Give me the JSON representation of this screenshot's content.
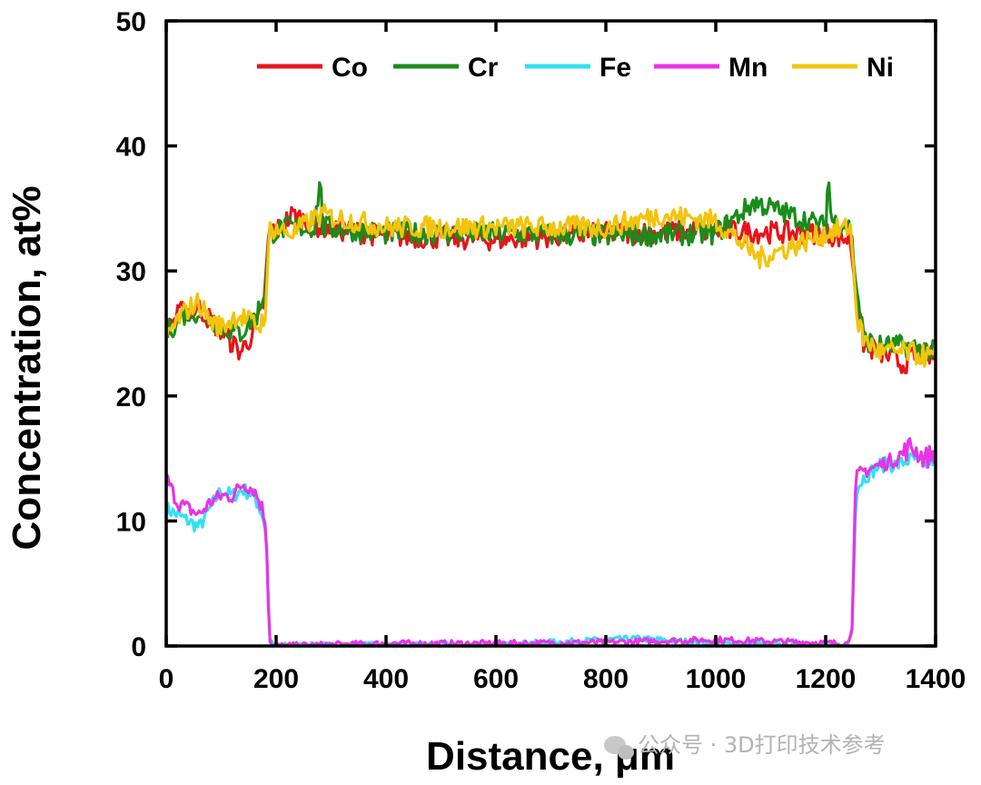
{
  "chart_data": {
    "type": "line",
    "title": "",
    "xlabel": "Distance, μm",
    "ylabel": "Concentration, at%",
    "xlim": [
      0,
      1400
    ],
    "ylim": [
      0,
      50
    ],
    "xticks": [
      0,
      200,
      400,
      600,
      800,
      1000,
      1200,
      1400
    ],
    "yticks": [
      0,
      10,
      20,
      30,
      40,
      50
    ],
    "grid": false,
    "legend_position": "top",
    "series": [
      {
        "name": "Co",
        "color": "#e8141a",
        "points": [
          [
            0,
            25.5
          ],
          [
            30,
            26.8
          ],
          [
            60,
            27.0
          ],
          [
            100,
            25.2
          ],
          [
            135,
            23.5
          ],
          [
            150,
            24.5
          ],
          [
            165,
            25.5
          ],
          [
            178,
            27.5
          ],
          [
            188,
            33.5
          ],
          [
            200,
            33.2
          ],
          [
            230,
            34.5
          ],
          [
            280,
            33.5
          ],
          [
            400,
            32.8
          ],
          [
            600,
            32.5
          ],
          [
            800,
            33.0
          ],
          [
            1000,
            33.2
          ],
          [
            1200,
            33.0
          ],
          [
            1245,
            32.5
          ],
          [
            1258,
            27.0
          ],
          [
            1270,
            24.0
          ],
          [
            1300,
            23.5
          ],
          [
            1340,
            22.5
          ],
          [
            1370,
            23.5
          ],
          [
            1400,
            23.0
          ]
        ]
      },
      {
        "name": "Cr",
        "color": "#1a8c1a",
        "points": [
          [
            0,
            25.0
          ],
          [
            30,
            26.5
          ],
          [
            60,
            26.8
          ],
          [
            100,
            25.5
          ],
          [
            135,
            25.0
          ],
          [
            165,
            26.5
          ],
          [
            180,
            28.5
          ],
          [
            188,
            33.0
          ],
          [
            220,
            33.5
          ],
          [
            270,
            33.5
          ],
          [
            280,
            37.5
          ],
          [
            285,
            33.5
          ],
          [
            400,
            33.0
          ],
          [
            600,
            33.0
          ],
          [
            800,
            32.8
          ],
          [
            1000,
            33.0
          ],
          [
            1070,
            35.5
          ],
          [
            1200,
            33.5
          ],
          [
            1205,
            38.0
          ],
          [
            1210,
            34.0
          ],
          [
            1245,
            33.5
          ],
          [
            1258,
            28.0
          ],
          [
            1270,
            24.5
          ],
          [
            1300,
            24.0
          ],
          [
            1350,
            24.0
          ],
          [
            1400,
            23.5
          ]
        ]
      },
      {
        "name": "Fe",
        "color": "#33e0f2",
        "points": [
          [
            0,
            11.0
          ],
          [
            20,
            10.5
          ],
          [
            40,
            10.0
          ],
          [
            60,
            9.5
          ],
          [
            80,
            11.0
          ],
          [
            100,
            12.5
          ],
          [
            120,
            12.0
          ],
          [
            140,
            12.5
          ],
          [
            160,
            12.0
          ],
          [
            175,
            10.5
          ],
          [
            182,
            9.0
          ],
          [
            188,
            0.5
          ],
          [
            195,
            0.0
          ],
          [
            400,
            0.1
          ],
          [
            600,
            0.1
          ],
          [
            860,
            0.6
          ],
          [
            1000,
            0.2
          ],
          [
            1240,
            0.0
          ],
          [
            1248,
            1.5
          ],
          [
            1255,
            12.5
          ],
          [
            1270,
            13.5
          ],
          [
            1300,
            14.5
          ],
          [
            1330,
            14.5
          ],
          [
            1360,
            15.0
          ],
          [
            1380,
            14.5
          ],
          [
            1400,
            15.0
          ]
        ]
      },
      {
        "name": "Mn",
        "color": "#e833e8",
        "points": [
          [
            0,
            13.5
          ],
          [
            20,
            11.5
          ],
          [
            40,
            11.0
          ],
          [
            60,
            10.5
          ],
          [
            80,
            11.5
          ],
          [
            100,
            12.0
          ],
          [
            120,
            12.0
          ],
          [
            140,
            13.0
          ],
          [
            160,
            12.5
          ],
          [
            175,
            11.0
          ],
          [
            182,
            9.5
          ],
          [
            188,
            0.5
          ],
          [
            195,
            0.0
          ],
          [
            400,
            0.2
          ],
          [
            600,
            0.2
          ],
          [
            800,
            0.3
          ],
          [
            1000,
            0.5
          ],
          [
            1240,
            0.2
          ],
          [
            1248,
            1.5
          ],
          [
            1255,
            13.5
          ],
          [
            1270,
            14.0
          ],
          [
            1300,
            14.5
          ],
          [
            1330,
            15.0
          ],
          [
            1355,
            16.0
          ],
          [
            1380,
            15.0
          ],
          [
            1400,
            15.5
          ]
        ]
      },
      {
        "name": "Ni",
        "color": "#f2c40d",
        "points": [
          [
            0,
            24.5
          ],
          [
            20,
            26.0
          ],
          [
            40,
            27.0
          ],
          [
            60,
            27.5
          ],
          [
            80,
            26.0
          ],
          [
            100,
            25.5
          ],
          [
            130,
            26.5
          ],
          [
            150,
            26.0
          ],
          [
            170,
            25.5
          ],
          [
            182,
            27.0
          ],
          [
            188,
            33.5
          ],
          [
            230,
            33.0
          ],
          [
            280,
            34.5
          ],
          [
            400,
            33.5
          ],
          [
            600,
            33.5
          ],
          [
            800,
            33.5
          ],
          [
            900,
            34.5
          ],
          [
            1000,
            34.0
          ],
          [
            1080,
            31.0
          ],
          [
            1200,
            33.0
          ],
          [
            1245,
            33.5
          ],
          [
            1258,
            26.0
          ],
          [
            1270,
            24.5
          ],
          [
            1300,
            23.5
          ],
          [
            1350,
            23.5
          ],
          [
            1400,
            23.0
          ]
        ]
      }
    ]
  },
  "watermark": {
    "icon": "wechat-icon",
    "text": "公众号 · 3D打印技术参考"
  }
}
